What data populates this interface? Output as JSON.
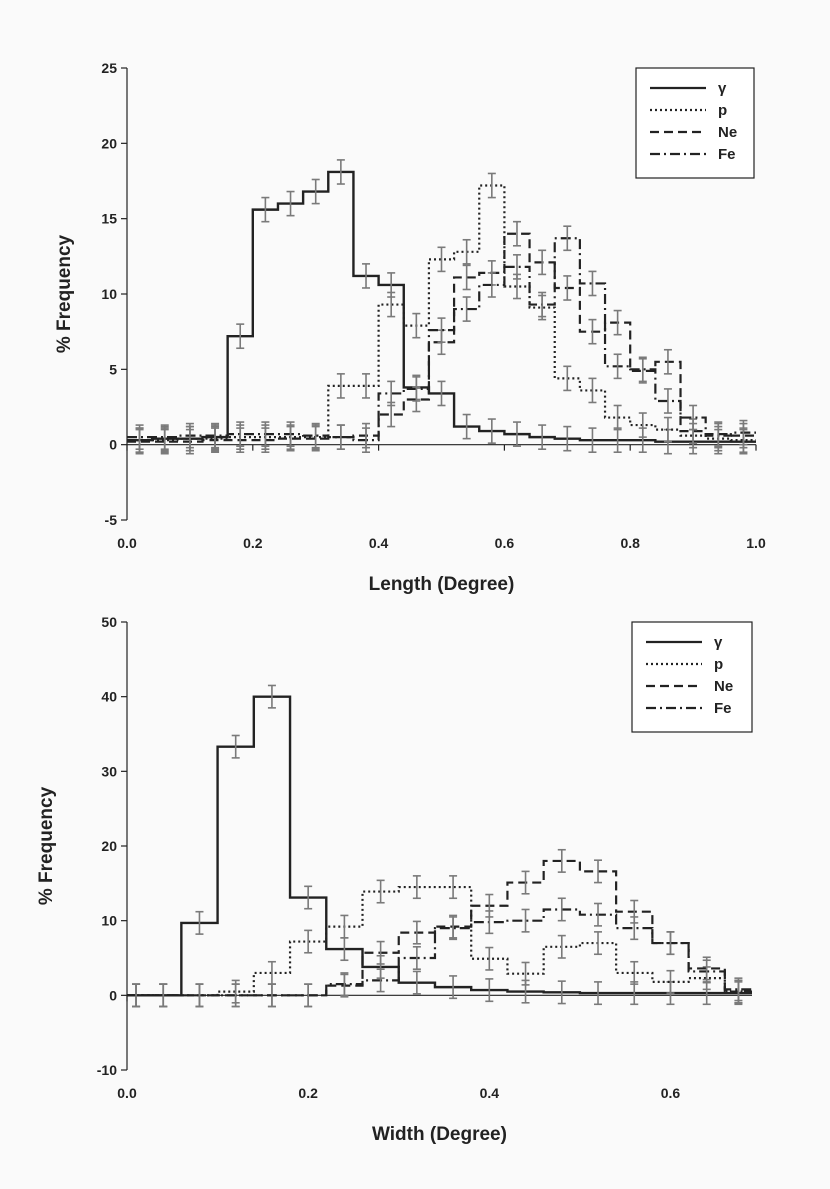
{
  "colors": {
    "line": "#222222",
    "errorbar": "#7a7a7a",
    "background": "#fafafa"
  },
  "chart_data": [
    {
      "type": "line",
      "step": true,
      "xlabel": "Length (Degree)",
      "ylabel": "% Frequency",
      "xlim": [
        0.0,
        1.0
      ],
      "ylim": [
        -5,
        25
      ],
      "xticks": [
        "0.0",
        "0.2",
        "0.4",
        "0.6",
        "0.8",
        "1.0"
      ],
      "yticks": [
        "-5",
        "0",
        "5",
        "10",
        "15",
        "20",
        "25"
      ],
      "bin_width": 0.04,
      "x": [
        0.0,
        0.04,
        0.08,
        0.12,
        0.16,
        0.2,
        0.24,
        0.28,
        0.32,
        0.36,
        0.4,
        0.44,
        0.48,
        0.52,
        0.56,
        0.6,
        0.64,
        0.68,
        0.72,
        0.76,
        0.8,
        0.84,
        0.88,
        0.92,
        0.96
      ],
      "series": [
        {
          "name": "γ",
          "style": "solid",
          "values": [
            0.3,
            0.4,
            0.4,
            0.5,
            7.2,
            15.6,
            16.0,
            16.8,
            18.1,
            11.2,
            10.6,
            3.8,
            3.4,
            1.2,
            0.9,
            0.7,
            0.5,
            0.4,
            0.3,
            0.3,
            0.3,
            0.2,
            0.2,
            0.2,
            0.2
          ]
        },
        {
          "name": "p",
          "style": "dotted",
          "values": [
            0.3,
            0.3,
            0.4,
            0.4,
            0.5,
            0.5,
            0.5,
            0.5,
            3.9,
            3.9,
            9.3,
            7.9,
            12.3,
            12.8,
            17.2,
            10.5,
            9.1,
            4.4,
            3.6,
            1.8,
            1.3,
            1.0,
            0.6,
            0.4,
            0.3
          ]
        },
        {
          "name": "Ne",
          "style": "dashed",
          "values": [
            0.2,
            0.2,
            0.2,
            0.3,
            0.3,
            0.3,
            0.4,
            0.4,
            0.5,
            0.6,
            2.0,
            3.0,
            6.8,
            11.1,
            11.4,
            14.0,
            12.1,
            10.4,
            7.5,
            8.1,
            4.9,
            5.5,
            0.9,
            0.7,
            0.6
          ]
        },
        {
          "name": "Fe",
          "style": "dashdot",
          "values": [
            0.5,
            0.5,
            0.6,
            0.6,
            0.7,
            0.7,
            0.7,
            0.6,
            0.5,
            0.3,
            3.4,
            3.7,
            7.6,
            9.0,
            10.6,
            11.8,
            9.3,
            13.7,
            10.7,
            5.2,
            5.0,
            2.9,
            1.8,
            0.6,
            0.8
          ]
        }
      ],
      "error_bar_halfwidth": 0.8,
      "legend_position": "top-right"
    },
    {
      "type": "line",
      "step": true,
      "xlabel": "Width (Degree)",
      "ylabel": "% Frequency",
      "xlim": [
        0.0,
        0.69
      ],
      "ylim": [
        -10,
        50
      ],
      "xticks": [
        "0.0",
        "0.2",
        "0.4",
        "0.6"
      ],
      "yticks": [
        "-10",
        "0",
        "10",
        "20",
        "30",
        "40",
        "50"
      ],
      "bin_width": 0.04,
      "x": [
        0.0,
        0.02,
        0.06,
        0.1,
        0.14,
        0.18,
        0.22,
        0.26,
        0.3,
        0.34,
        0.38,
        0.42,
        0.46,
        0.5,
        0.54,
        0.58,
        0.62,
        0.66
      ],
      "series": [
        {
          "name": "γ",
          "style": "solid",
          "values": [
            0.0,
            0.0,
            9.7,
            33.3,
            40.0,
            13.1,
            6.2,
            3.8,
            1.7,
            1.1,
            0.7,
            0.5,
            0.4,
            0.3,
            0.3,
            0.3,
            0.3,
            0.3
          ]
        },
        {
          "name": "p",
          "style": "dotted",
          "values": [
            0.0,
            0.0,
            0.0,
            0.5,
            3.0,
            7.2,
            9.2,
            13.9,
            14.5,
            14.5,
            4.9,
            2.9,
            6.5,
            7.0,
            3.0,
            1.8,
            2.3,
            0.5
          ]
        },
        {
          "name": "Ne",
          "style": "dashed",
          "values": [
            0.0,
            0.0,
            0.0,
            0.0,
            0.0,
            0.0,
            1.3,
            5.7,
            8.4,
            9.2,
            12.0,
            15.1,
            18.0,
            16.6,
            11.2,
            7.0,
            3.6,
            0.5
          ]
        },
        {
          "name": "Fe",
          "style": "dashdot",
          "values": [
            0.0,
            0.0,
            0.0,
            0.0,
            0.0,
            0.0,
            1.5,
            2.0,
            5.0,
            9.0,
            9.8,
            10.0,
            11.5,
            10.8,
            9.0,
            7.0,
            3.2,
            0.8
          ]
        }
      ],
      "error_bar_halfwidth": 1.5,
      "legend_position": "top-right"
    }
  ]
}
